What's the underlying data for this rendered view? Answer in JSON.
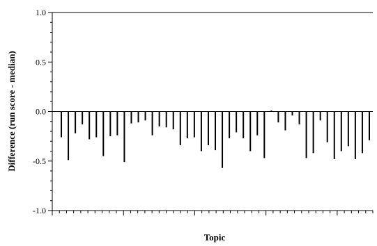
{
  "chart_data": {
    "type": "bar",
    "xlabel": "Topic",
    "ylabel": "Difference (run score - median)",
    "ylim": [
      -1.0,
      1.0
    ],
    "yticks": [
      "1.0",
      "0.5",
      "0.0",
      "-0.5",
      "-1.0"
    ],
    "grid": false,
    "bar_color": "#000000",
    "series": [
      {
        "values": [
          -0.26,
          -0.49,
          -0.22,
          -0.13,
          -0.28,
          -0.26,
          -0.45,
          -0.25,
          -0.24,
          -0.51,
          -0.12,
          -0.11,
          -0.09,
          -0.24,
          -0.15,
          -0.16,
          -0.18,
          -0.34,
          -0.27,
          -0.26,
          -0.4,
          -0.34,
          -0.39,
          -0.57,
          -0.27,
          -0.21,
          -0.27,
          -0.4,
          -0.24,
          -0.47,
          0.01,
          -0.11,
          -0.19,
          -0.04,
          -0.13,
          -0.47,
          -0.42,
          -0.09,
          -0.31,
          -0.48,
          -0.4,
          -0.35,
          -0.48,
          -0.42,
          -0.29
        ]
      }
    ]
  }
}
